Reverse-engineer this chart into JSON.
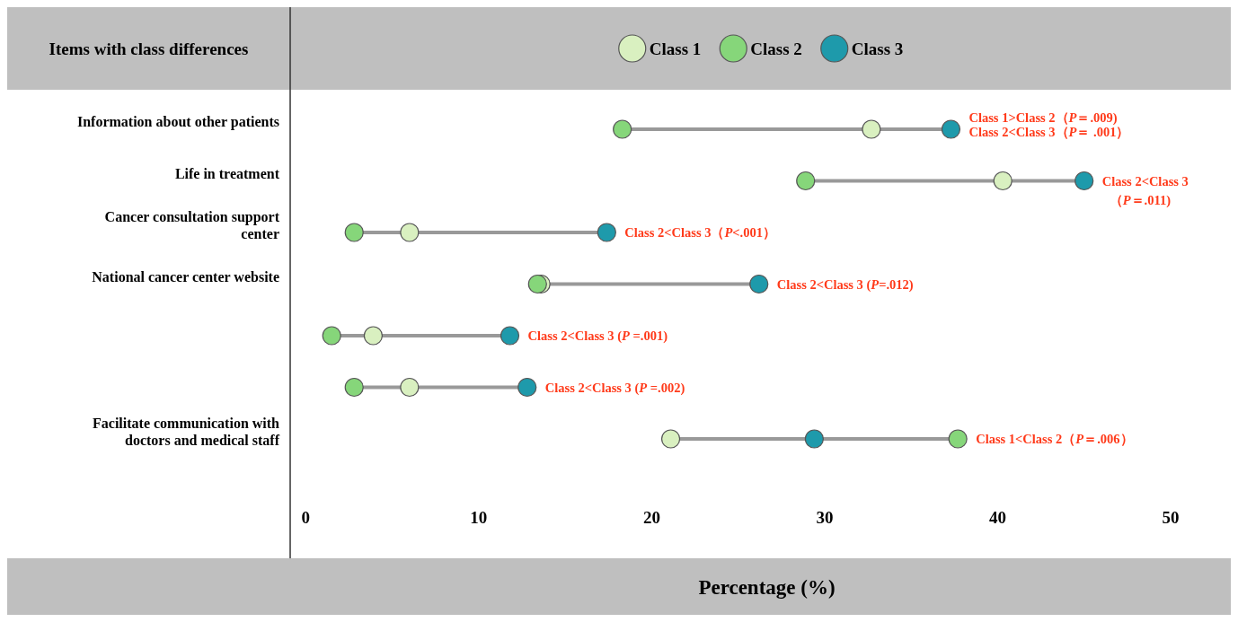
{
  "chart_data": {
    "type": "scatter",
    "ylabel": "Items with class differences",
    "xlabel": "Percentage (%)",
    "categories": [
      "Information about other patients",
      "Life in treatment",
      "Cancer consultation support center",
      "National cancer center website",
      null,
      null,
      "Facilitate communication with doctors and medical staff"
    ],
    "series": [
      {
        "name": "Class 1",
        "color": "#d9f0c0",
        "values": [
          32.7,
          40.3,
          6.0,
          13.6,
          3.9,
          6.0,
          21.1
        ]
      },
      {
        "name": "Class 2",
        "color": "#86d67a",
        "values": [
          18.3,
          28.9,
          2.8,
          13.4,
          1.5,
          2.8,
          37.7
        ]
      },
      {
        "name": "Class 3",
        "color": "#1e9aab",
        "values": [
          37.3,
          45.0,
          17.4,
          26.2,
          11.8,
          12.8,
          29.4
        ]
      }
    ],
    "orientation": "horizontal",
    "xlim": [
      -0.9,
      50
    ],
    "xticks": [
      0,
      10,
      20,
      30,
      40,
      50
    ],
    "marker": "circle",
    "legend": "top",
    "grid": false,
    "annotations": [
      "Class 1>Class 2（P＝.009)",
      "Class 2<Class 3（P＝ .001）",
      "Class 2<Class 3（P＝.011)",
      "Class 2<Class 3（P<.001）",
      "Class 2<Class 3 (P=.012)",
      "Class 2<Class 3 (P =.001)",
      "Class 2<Class 3 (P =.002)",
      "Class 1<Class 2（P＝.006）"
    ]
  }
}
